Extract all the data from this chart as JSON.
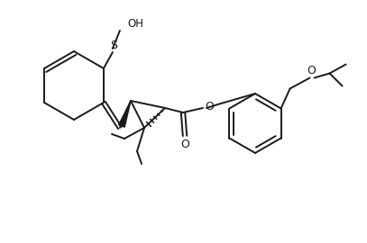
{
  "background_color": "#ffffff",
  "line_color": "#1a1a1a",
  "line_width": 1.4,
  "text_color": "#1a1a1a",
  "font_size": 8.5,
  "fig_width": 4.07,
  "fig_height": 2.7,
  "dpi": 100,
  "OH_label": "OH",
  "S_label": "S",
  "O_label": "O"
}
